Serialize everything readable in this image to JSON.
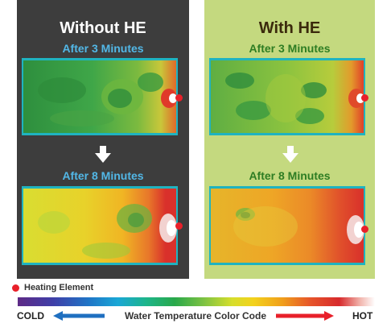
{
  "panels": [
    {
      "title": "Without HE",
      "stages": [
        {
          "label": "After 3 Minutes"
        },
        {
          "label": "After 8 Minutes"
        }
      ]
    },
    {
      "title": "With HE",
      "stages": [
        {
          "label": "After 3 Minutes"
        },
        {
          "label": "After 8 Minutes"
        }
      ]
    }
  ],
  "legend": {
    "heater_label": "Heating Element",
    "scale_title": "Water Temperature Color Code",
    "cold_label": "COLD",
    "hot_label": "HOT"
  },
  "colors": {
    "heater": "#e8202a",
    "cold_arrow": "#1f6fc0",
    "hot_arrow": "#e8202a"
  }
}
